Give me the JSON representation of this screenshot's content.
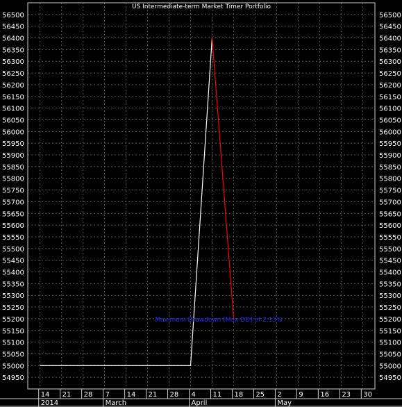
{
  "chart_data": {
    "type": "line",
    "title": "US Intermediate-term Market Timer Portfolio",
    "xlabel": "",
    "ylabel": "",
    "ylim": [
      54900,
      56550
    ],
    "yticks": [
      54950,
      55000,
      55050,
      55100,
      55150,
      55200,
      55250,
      55300,
      55350,
      55400,
      55450,
      55500,
      55550,
      55600,
      55650,
      55700,
      55750,
      55800,
      55850,
      55900,
      55950,
      56000,
      56050,
      56100,
      56150,
      56200,
      56250,
      56300,
      56350,
      56400,
      56450,
      56500
    ],
    "grid": true,
    "x_day_labels": [
      "14",
      "21",
      "28",
      "7",
      "14",
      "21",
      "28",
      "4",
      "11",
      "18",
      "25",
      "2",
      "9",
      "16",
      "23",
      "30"
    ],
    "x_month_labels": [
      "2014",
      "March",
      "April",
      "May"
    ],
    "series": [
      {
        "color": "#ffffff",
        "points": [
          {
            "x": "2014-02-14",
            "y": 55000
          },
          {
            "x": "2014-04-04",
            "y": 55000
          },
          {
            "x": "2014-04-11",
            "y": 56400
          }
        ]
      },
      {
        "color": "#ff0000",
        "points": [
          {
            "x": "2014-04-11",
            "y": 56400
          },
          {
            "x": "2014-04-18",
            "y": 55200
          }
        ]
      }
    ],
    "annotations": [
      {
        "text": "Maximum Drawdown [Max DD] of 2.13%",
        "color": "#1f2bff"
      }
    ]
  }
}
